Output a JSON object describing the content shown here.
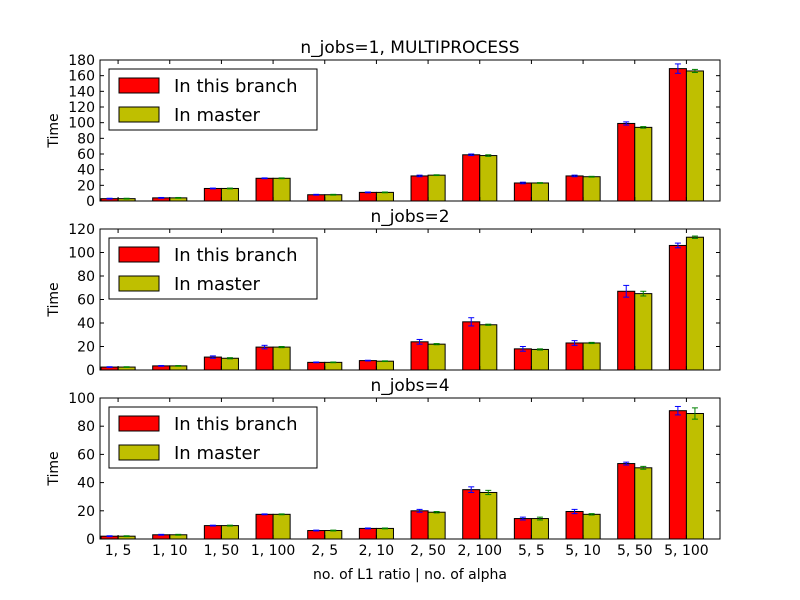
{
  "figure": {
    "xlabel": "no. of L1 ratio | no. of alpha",
    "categories": [
      "1, 5",
      "1, 10",
      "1, 50",
      "1, 100",
      "2, 5",
      "2, 10",
      "2, 50",
      "2, 100",
      "5, 5",
      "5, 10",
      "5, 50",
      "5, 100"
    ]
  },
  "chart_data": [
    {
      "type": "bar",
      "title": "n_jobs=1, MULTIPROCESS",
      "ylabel": "Time",
      "ylim": [
        0,
        180
      ],
      "yticks": [
        0,
        20,
        40,
        60,
        80,
        100,
        120,
        140,
        160,
        180
      ],
      "legend": "top-left",
      "categories": [
        "1, 5",
        "1, 10",
        "1, 50",
        "1, 100",
        "2, 5",
        "2, 10",
        "2, 50",
        "2, 100",
        "5, 5",
        "5, 10",
        "5, 50",
        "5, 100"
      ],
      "series": [
        {
          "name": "In this branch",
          "color": "#ff0000",
          "errcolor": "#0000ff",
          "values": [
            3,
            4,
            16,
            29,
            8,
            11,
            32,
            59,
            23,
            32,
            99,
            169
          ],
          "errors": [
            0.5,
            0.5,
            0.5,
            0.5,
            0.5,
            0.5,
            1,
            1,
            1,
            1,
            2,
            6
          ]
        },
        {
          "name": "In master",
          "color": "#bfbf00",
          "errcolor": "#008000",
          "values": [
            3,
            4,
            16,
            29,
            8,
            11,
            33,
            58,
            23,
            31,
            94,
            166
          ],
          "errors": [
            0.5,
            0.5,
            0.5,
            0.5,
            0.5,
            0.5,
            0.5,
            1,
            0.5,
            0.5,
            1,
            2
          ]
        }
      ]
    },
    {
      "type": "bar",
      "title": "n_jobs=2",
      "ylabel": "Time",
      "ylim": [
        0,
        120
      ],
      "yticks": [
        0,
        20,
        40,
        60,
        80,
        100,
        120
      ],
      "legend": "top-left",
      "categories": [
        "1, 5",
        "1, 10",
        "1, 50",
        "1, 100",
        "2, 5",
        "2, 10",
        "2, 50",
        "2, 100",
        "5, 5",
        "5, 10",
        "5, 50",
        "5, 100"
      ],
      "series": [
        {
          "name": "In this branch",
          "color": "#ff0000",
          "errcolor": "#0000ff",
          "values": [
            2.5,
            3.5,
            11,
            19.5,
            6.5,
            8,
            24,
            41,
            18,
            23,
            67,
            106
          ],
          "errors": [
            0.3,
            0.3,
            1,
            1.5,
            0.3,
            0.3,
            2,
            3.5,
            2,
            2,
            5,
            2
          ]
        },
        {
          "name": "In master",
          "color": "#bfbf00",
          "errcolor": "#008000",
          "values": [
            2.5,
            3.5,
            10,
            19.5,
            6.5,
            7.5,
            22,
            38.5,
            17.5,
            23,
            65,
            113
          ],
          "errors": [
            0.3,
            0.3,
            0.5,
            0.5,
            0.3,
            0.3,
            0.5,
            0.5,
            0.5,
            0.5,
            2,
            1
          ]
        }
      ]
    },
    {
      "type": "bar",
      "title": "n_jobs=4",
      "ylabel": "Time",
      "ylim": [
        0,
        100
      ],
      "yticks": [
        0,
        20,
        40,
        60,
        80,
        100
      ],
      "legend": "top-left",
      "categories": [
        "1, 5",
        "1, 10",
        "1, 50",
        "1, 100",
        "2, 5",
        "2, 10",
        "2, 50",
        "2, 100",
        "5, 5",
        "5, 10",
        "5, 50",
        "5, 100"
      ],
      "series": [
        {
          "name": "In this branch",
          "color": "#ff0000",
          "errcolor": "#0000ff",
          "values": [
            2,
            3,
            9.5,
            17.5,
            6,
            7.5,
            20,
            35,
            14.5,
            19.5,
            53.5,
            91
          ],
          "errors": [
            0.3,
            0.3,
            0.3,
            0.3,
            0.3,
            0.3,
            1,
            2,
            1,
            1.5,
            1,
            3
          ]
        },
        {
          "name": "In master",
          "color": "#bfbf00",
          "errcolor": "#008000",
          "values": [
            2,
            3,
            9.5,
            17.5,
            6,
            7.5,
            19,
            33,
            14.5,
            17.5,
            50.5,
            89
          ],
          "errors": [
            0.3,
            0.3,
            0.3,
            0.3,
            0.3,
            0.3,
            0.5,
            1.5,
            1,
            0.5,
            1,
            4
          ]
        }
      ]
    }
  ]
}
